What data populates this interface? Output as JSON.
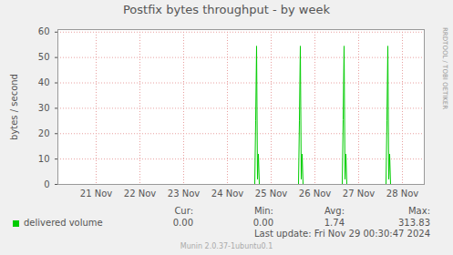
{
  "chart_data": {
    "type": "line",
    "title": "Postfix bytes throughput - by week",
    "y_label": "bytes / second",
    "x": [
      24.625,
      25.125,
      25.1458,
      25.1667,
      25.1875,
      25.2083,
      25.2292,
      26.125,
      26.1458,
      26.1667,
      26.1875,
      26.2083,
      26.2292,
      27.125,
      27.1458,
      27.1667,
      27.1875,
      27.2083,
      27.2292,
      28.125,
      28.1458,
      28.1667,
      28.1875,
      28.2083,
      28.2292,
      29.0
    ],
    "series": [
      {
        "name": "delivered volume",
        "color": "#00cc00",
        "values": [
          0,
          0,
          25,
          54.5,
          2,
          12,
          0,
          0,
          25,
          54.5,
          2,
          12,
          0,
          0,
          25.5,
          54.5,
          2,
          12,
          0,
          0,
          25,
          54.5,
          2,
          12,
          0,
          0
        ]
      }
    ],
    "xlim": [
      20.625,
      29.0
    ],
    "xticks": [
      {
        "value": 21.5,
        "label": "21 Nov"
      },
      {
        "value": 22.5,
        "label": "22 Nov"
      },
      {
        "value": 23.5,
        "label": "23 Nov"
      },
      {
        "value": 24.5,
        "label": "24 Nov"
      },
      {
        "value": 25.5,
        "label": "25 Nov"
      },
      {
        "value": 26.5,
        "label": "26 Nov"
      },
      {
        "value": 27.5,
        "label": "27 Nov"
      },
      {
        "value": 28.5,
        "label": "28 Nov"
      }
    ],
    "ylim": [
      0,
      61
    ],
    "yticks": [
      0,
      10,
      20,
      30,
      40,
      50,
      60
    ],
    "grid": true,
    "stats": {
      "labels": [
        "Cur:",
        "Min:",
        "Avg:",
        "Max:"
      ],
      "values": [
        0,
        0,
        1.74,
        313.83
      ],
      "value_labels": [
        "0.00",
        "0.00",
        "1.74",
        "313.83"
      ]
    },
    "last_update": "Last update: Fri Nov 29 00:30:47 2024",
    "footer": "Munin 2.0.37-1ubuntu0.1",
    "side_text": "RRDTOOL / TOBI OETIKER"
  }
}
